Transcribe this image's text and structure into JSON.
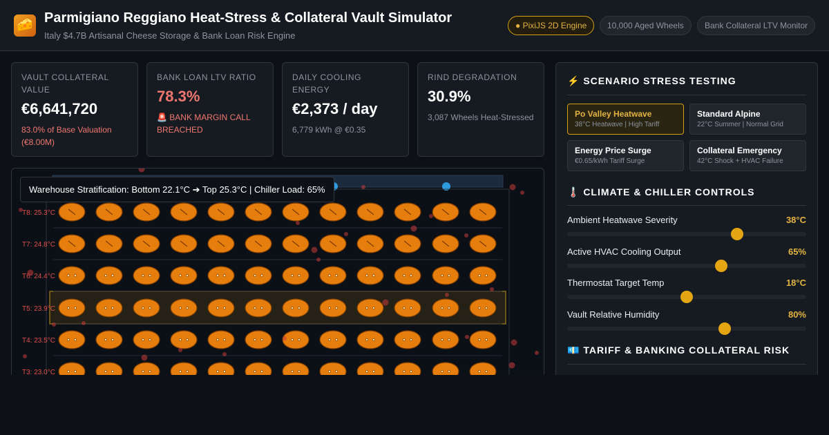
{
  "header": {
    "icon": "🧀",
    "title": "Parmigiano Reggiano Heat-Stress & Collateral Vault Simulator",
    "subtitle": "Italy $4.7B Artisanal Cheese Storage & Bank Loan Risk Engine",
    "badges": [
      "● PixiJS 2D Engine",
      "10,000 Aged Wheels",
      "Bank Collateral LTV Monitor"
    ]
  },
  "kpis": [
    {
      "label": "VAULT COLLATERAL VALUE",
      "value": "€6,641,720",
      "note": "83.0% of Base Valuation (€8.00M)"
    },
    {
      "label": "BANK LOAN LTV RATIO",
      "value": "78.3%",
      "note": "🚨 BANK MARGIN CALL BREACHED"
    },
    {
      "label": "DAILY COOLING ENERGY",
      "value": "€2,373 / day",
      "note": "6,779 kWh @ €0.35"
    },
    {
      "label": "RIND DEGRADATION",
      "value": "30.9%",
      "note": "3,087 Wheels Heat-Stressed"
    }
  ],
  "warehouse": {
    "overlay": "Warehouse Stratification: Bottom 22.1°C ➔ Top 25.3°C | Chiller Load: 65%",
    "tiers": [
      "T8: 25.3°C",
      "T7: 24.8°C",
      "T6: 24.4°C",
      "T5: 23.9°C",
      "T4: 23.5°C",
      "T3: 23.0°C"
    ]
  },
  "sidebar": {
    "scenario_title": "⚡ SCENARIO STRESS TESTING",
    "scenarios": [
      {
        "name": "Po Valley Heatwave",
        "desc": "38°C Heatwave | High Tariff"
      },
      {
        "name": "Standard Alpine",
        "desc": "22°C Summer | Normal Grid"
      },
      {
        "name": "Energy Price Surge",
        "desc": "€0.65/kWh Tariff Surge"
      },
      {
        "name": "Collateral Emergency",
        "desc": "42°C Shock + HVAC Failure"
      }
    ],
    "controls_title": "🌡️ CLIMATE & CHILLER CONTROLS",
    "controls": [
      {
        "label": "Ambient Heatwave Severity",
        "value": "38°C"
      },
      {
        "label": "Active HVAC Cooling Output",
        "value": "65%"
      },
      {
        "label": "Thermostat Target Temp",
        "value": "18°C"
      },
      {
        "label": "Vault Relative Humidity",
        "value": "80%"
      }
    ],
    "risk_title": "💶 TARIFF & BANKING COLLATERAL RISK"
  }
}
